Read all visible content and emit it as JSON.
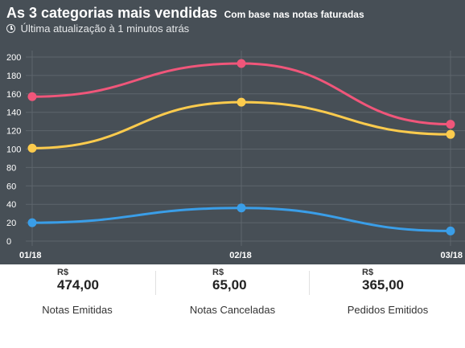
{
  "header": {
    "title": "As 3 categorias mais vendidas",
    "subtitle": "Com base nas notas faturadas",
    "update_text": "Última atualização à 1 minutos atrás",
    "update_icon": "clock-icon"
  },
  "chart_data": {
    "type": "line",
    "categories": [
      "01/18",
      "02/18",
      "03/18"
    ],
    "ylim": [
      0,
      200
    ],
    "yticks": [
      0,
      20,
      40,
      60,
      80,
      100,
      120,
      140,
      160,
      180,
      200
    ],
    "grid": true,
    "series": [
      {
        "color": "#f0567a",
        "values": [
          157,
          193,
          127
        ]
      },
      {
        "color": "#fccb4d",
        "values": [
          101,
          151,
          116
        ]
      },
      {
        "color": "#3a9ee8",
        "values": [
          20,
          36,
          11
        ]
      }
    ]
  },
  "stats": [
    {
      "currency": "R$",
      "value": "474,00",
      "label": "Notas Emitidas"
    },
    {
      "currency": "R$",
      "value": "65,00",
      "label": "Notas Canceladas"
    },
    {
      "currency": "R$",
      "value": "365,00",
      "label": "Pedidos Emitidos"
    }
  ],
  "colors": {
    "card_background": "#474f56",
    "gridline": "#5d656c"
  }
}
